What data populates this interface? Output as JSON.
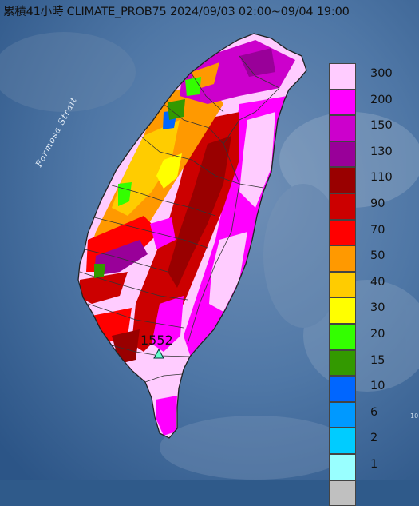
{
  "title": "累積41小時 CLIMATE_PROB75 2024/09/03 02:00~09/04 19:00",
  "sea_label": "Formosa Strait",
  "station": {
    "label": "1552",
    "marker": "triangle-marker-icon"
  },
  "edge_mark": "10",
  "legend": {
    "items": [
      {
        "label": "300",
        "color": "#ffccff"
      },
      {
        "label": "200",
        "color": "#ff00ff"
      },
      {
        "label": "150",
        "color": "#cc00cc"
      },
      {
        "label": "130",
        "color": "#990099"
      },
      {
        "label": "110",
        "color": "#990000"
      },
      {
        "label": "90",
        "color": "#cc0000"
      },
      {
        "label": "70",
        "color": "#ff0000"
      },
      {
        "label": "50",
        "color": "#ff9900"
      },
      {
        "label": "40",
        "color": "#ffcc00"
      },
      {
        "label": "30",
        "color": "#ffff00"
      },
      {
        "label": "20",
        "color": "#33ff00"
      },
      {
        "label": "15",
        "color": "#339900"
      },
      {
        "label": "10",
        "color": "#0066ff"
      },
      {
        "label": "6",
        "color": "#0099ff"
      },
      {
        "label": "2",
        "color": "#00ccff"
      },
      {
        "label": "1",
        "color": "#99ffff"
      },
      {
        "label": "",
        "color": "#c0c0c0"
      }
    ]
  }
}
